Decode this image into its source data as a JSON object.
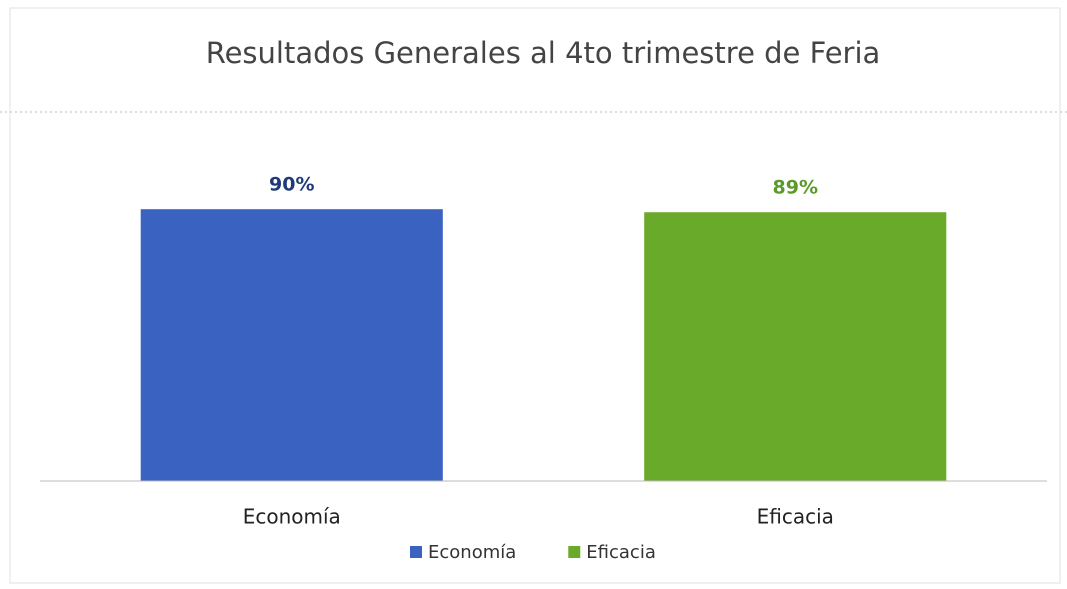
{
  "chart_data": {
    "type": "bar",
    "title": "Resultados Generales al 4to trimestre de Feria",
    "categories": [
      "Economía",
      "Eficacia"
    ],
    "values": [
      90,
      89
    ],
    "value_labels": [
      "90%",
      "89%"
    ],
    "colors": [
      "#3a62c0",
      "#6aaa2a"
    ],
    "label_colors": [
      "#1f3a7a",
      "#5a9a28"
    ],
    "ylim": [
      0,
      100
    ],
    "legend": "bottom"
  }
}
